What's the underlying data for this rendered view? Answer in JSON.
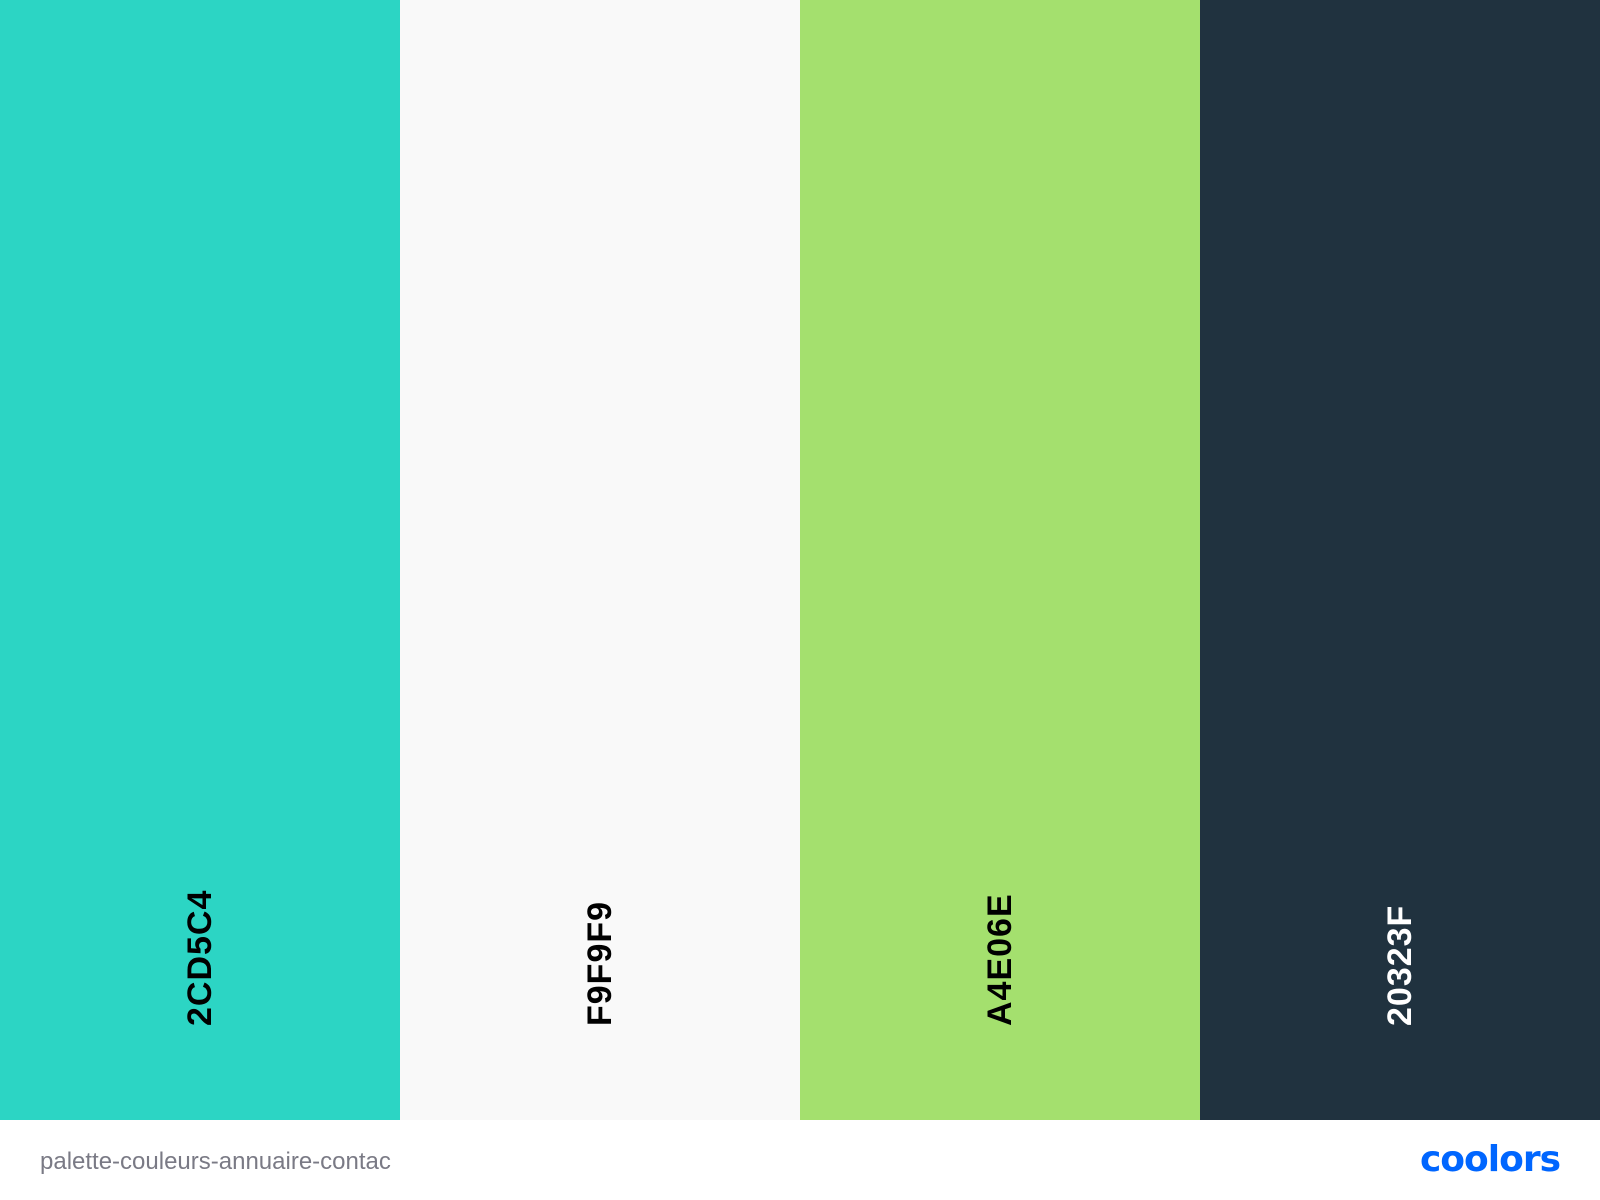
{
  "palette": {
    "colors": [
      {
        "hex_label": "2CD5C4",
        "bg": "#2CD5C4",
        "text_color": "#000000"
      },
      {
        "hex_label": "F9F9F9",
        "bg": "#F9F9F9",
        "text_color": "#000000"
      },
      {
        "hex_label": "A4E06E",
        "bg": "#A4E06E",
        "text_color": "#000000"
      },
      {
        "hex_label": "20323F",
        "bg": "#20323F",
        "text_color": "#FFFFFF"
      }
    ]
  },
  "footer": {
    "palette_name": "palette-couleurs-annuaire-contac",
    "brand": "coolors",
    "brand_color": "#0066FF"
  }
}
